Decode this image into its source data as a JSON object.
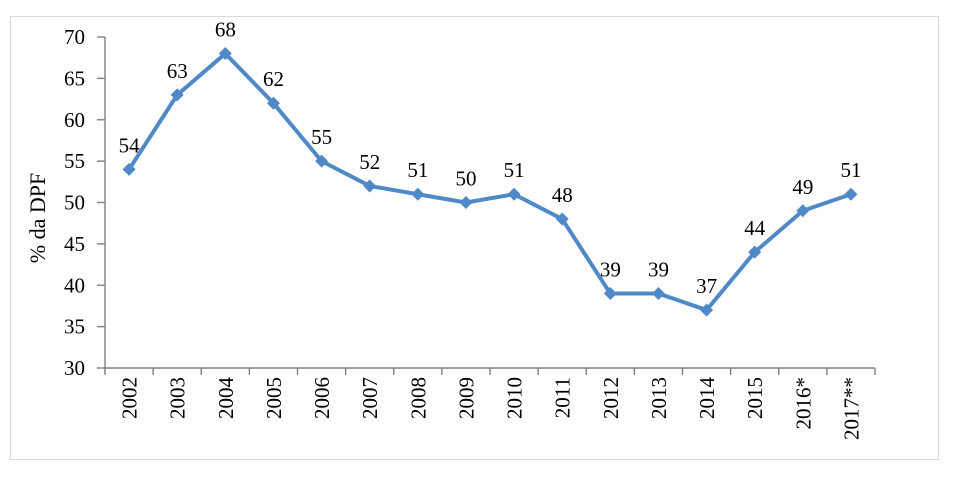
{
  "chart_data": {
    "type": "line",
    "title": "",
    "ylabel": "% da DPF",
    "xlabel": "",
    "categories": [
      "2002",
      "2003",
      "2004",
      "2005",
      "2006",
      "2007",
      "2008",
      "2009",
      "2010",
      "2011",
      "2012",
      "2013",
      "2014",
      "2015",
      "2016*",
      "2017**"
    ],
    "values": [
      54,
      63,
      68,
      62,
      55,
      52,
      51,
      50,
      51,
      48,
      39,
      39,
      37,
      44,
      49,
      51
    ],
    "data_labels": [
      "54",
      "63",
      "68",
      "62",
      "55",
      "52",
      "51",
      "50",
      "51",
      "48",
      "39",
      "39",
      "37",
      "44",
      "49",
      "51"
    ],
    "ylim": [
      30,
      70
    ],
    "yticks": [
      30,
      35,
      40,
      45,
      50,
      55,
      60,
      65,
      70
    ],
    "grid": false,
    "legend": "none",
    "marker": "diamond",
    "x_label_rotation": -90,
    "colors": {
      "line": "#5089C8",
      "marker": "#5089C8",
      "axis": "#808080",
      "text": "#000000",
      "frame_border": "#d9d9d9",
      "background": "#ffffff"
    }
  }
}
